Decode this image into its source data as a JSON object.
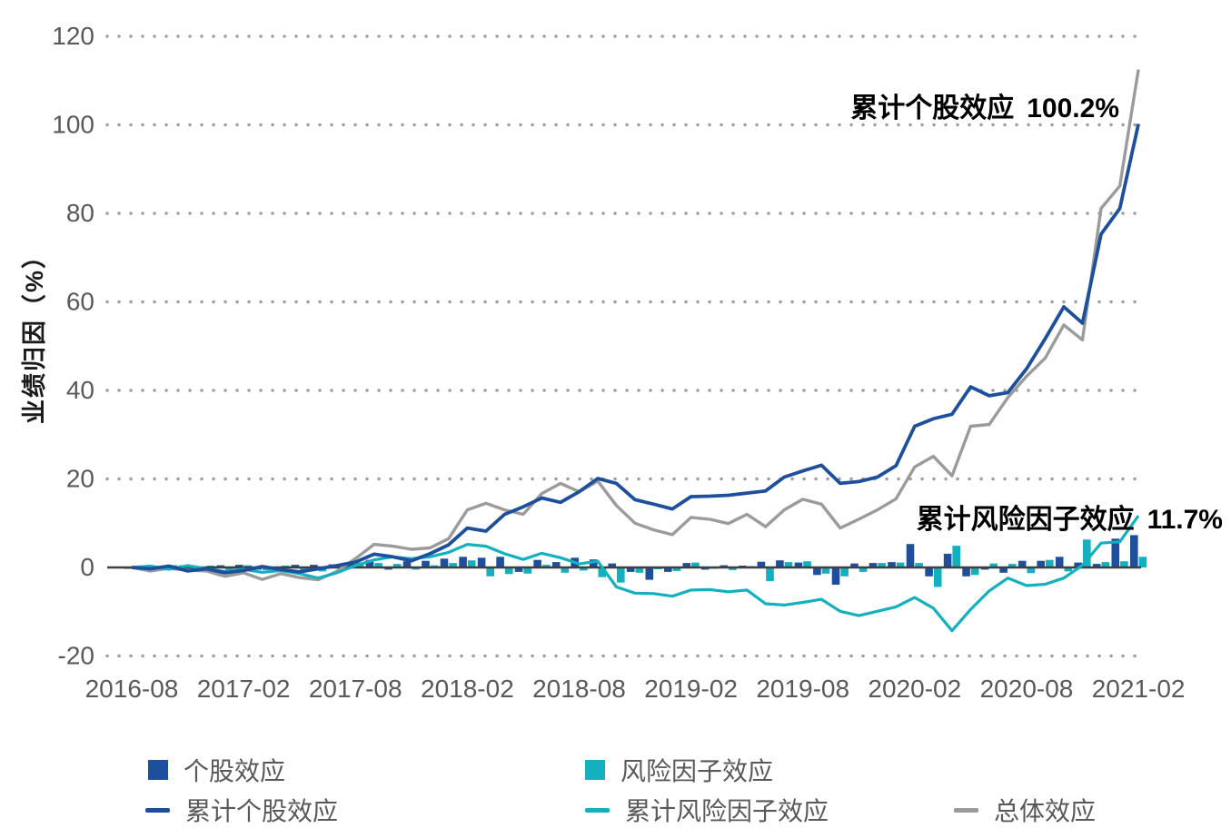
{
  "chart_data": {
    "type": "bar+line combo",
    "title": "",
    "ylabel": "业绩归因（%）",
    "ylim": [
      -20,
      120
    ],
    "yticks": [
      120,
      100,
      80,
      60,
      40,
      20,
      0,
      -20
    ],
    "grid": "dotted horizontal",
    "legend_position": "bottom",
    "xtick_labels": [
      "2016-08",
      "2017-02",
      "2017-08",
      "2018-02",
      "2018-08",
      "2019-02",
      "2019-08",
      "2020-02",
      "2020-08",
      "2021-02"
    ],
    "months": [
      "2016-08",
      "2016-09",
      "2016-10",
      "2016-11",
      "2016-12",
      "2017-01",
      "2017-02",
      "2017-03",
      "2017-04",
      "2017-05",
      "2017-06",
      "2017-07",
      "2017-08",
      "2017-09",
      "2017-10",
      "2017-11",
      "2017-12",
      "2018-01",
      "2018-02",
      "2018-03",
      "2018-04",
      "2018-05",
      "2018-06",
      "2018-07",
      "2018-08",
      "2018-09",
      "2018-10",
      "2018-11",
      "2018-12",
      "2019-01",
      "2019-02",
      "2019-03",
      "2019-04",
      "2019-05",
      "2019-06",
      "2019-07",
      "2019-08",
      "2019-09",
      "2019-10",
      "2019-11",
      "2019-12",
      "2020-01",
      "2020-02",
      "2020-03",
      "2020-04",
      "2020-05",
      "2020-06",
      "2020-07",
      "2020-08",
      "2020-09",
      "2020-10",
      "2020-11",
      "2020-12",
      "2021-01",
      "2021-02"
    ],
    "series": [
      {
        "name": "个股效应",
        "type": "bar",
        "color": "#1e4f9c",
        "values": [
          -0.3,
          0.4,
          -0.6,
          0.5,
          -0.8,
          0.5,
          0.6,
          -0.5,
          -0.4,
          0.6,
          0.6,
          0.7,
          1.0,
          1.7,
          -0.5,
          1.4,
          1.5,
          2.0,
          2.4,
          2.2,
          2.4,
          -1.0,
          1.7,
          1.2,
          2.2,
          1.8,
          0.9,
          -1.0,
          -2.8,
          -1.0,
          1.0,
          -0.5,
          0.5,
          0.4,
          1.3,
          1.6,
          1.1,
          -1.7,
          -3.9,
          0.9,
          1.0,
          1.2,
          5.3,
          -2.0,
          3.1,
          -2.0,
          -0.5,
          -1.2,
          1.5,
          1.5,
          2.4,
          1.1,
          0.8,
          6.5,
          7.3
        ]
      },
      {
        "name": "风险因子效应",
        "type": "bar",
        "color": "#13b1bf",
        "values": [
          0.3,
          -0.4,
          0.5,
          -0.4,
          0.4,
          -0.6,
          0.5,
          -0.6,
          0.4,
          -0.7,
          -0.9,
          0.8,
          1.1,
          1.0,
          0.8,
          -0.5,
          0.5,
          1.0,
          1.6,
          -2.0,
          -1.5,
          -1.4,
          0.6,
          -1.2,
          -0.7,
          -2.2,
          -3.4,
          -1.2,
          -0.4,
          -0.8,
          1.1,
          -0.3,
          -0.6,
          0.3,
          -3.1,
          1.2,
          1.4,
          -1.4,
          -2.0,
          -1.0,
          1.0,
          1.1,
          1.0,
          -4.4,
          4.9,
          -1.7,
          0.9,
          0.8,
          -1.3,
          1.7,
          -0.9,
          6.3,
          1.2,
          1.4,
          2.4
        ]
      },
      {
        "name": "累计个股效应",
        "type": "line",
        "color": "#1e4f9c",
        "final_value": "100.2%",
        "values": [
          0,
          -0.3,
          0.3,
          -0.8,
          -0.3,
          -1.2,
          -0.7,
          0.2,
          -0.5,
          -1.0,
          -0.3,
          0.4,
          1.2,
          3.0,
          2.4,
          1.5,
          3.1,
          5.1,
          8.9,
          8.2,
          12.0,
          13.7,
          15.7,
          14.7,
          17.1,
          20.1,
          19.0,
          15.3,
          14.3,
          13.2,
          16.0,
          16.1,
          16.3,
          16.8,
          17.3,
          20.4,
          21.8,
          23.1,
          19.0,
          19.4,
          20.4,
          23.0,
          31.9,
          33.6,
          34.6,
          40.8,
          38.8,
          39.5,
          44.9,
          51.7,
          58.9,
          55.2,
          75.3,
          81.1,
          100.2
        ]
      },
      {
        "name": "累计风险因子效应",
        "type": "line",
        "color": "#13b1bf",
        "final_value": "11.7%",
        "values": [
          0,
          0.3,
          -0.4,
          0.4,
          -0.3,
          -0.9,
          -0.4,
          -1.1,
          -0.7,
          -1.4,
          -2.4,
          -1.2,
          0.4,
          1.7,
          2.4,
          2.0,
          2.4,
          3.4,
          5.2,
          4.8,
          3.1,
          1.8,
          3.2,
          2.2,
          0.8,
          1.4,
          -4.4,
          -5.8,
          -5.9,
          -6.5,
          -5.1,
          -5.0,
          -5.5,
          -5.1,
          -8.2,
          -8.5,
          -7.9,
          -7.2,
          -9.9,
          -10.9,
          -9.9,
          -8.9,
          -6.8,
          -9.2,
          -14.3,
          -9.5,
          -5.3,
          -2.4,
          -4.1,
          -3.8,
          -2.4,
          0.5,
          5.5,
          5.8,
          11.7
        ]
      },
      {
        "name": "总体效应",
        "type": "line",
        "color": "#9b9b9b",
        "values": [
          0,
          -0.8,
          -0.2,
          -0.6,
          -0.8,
          -2.0,
          -1.2,
          -2.7,
          -1.4,
          -2.3,
          -2.8,
          -0.9,
          2.0,
          5.2,
          4.8,
          4.1,
          4.4,
          6.5,
          13.0,
          14.5,
          13.0,
          12.0,
          16.7,
          19.0,
          17.1,
          19.5,
          14.0,
          10.0,
          8.5,
          7.4,
          11.3,
          10.9,
          9.9,
          12.0,
          9.2,
          13.0,
          15.4,
          14.3,
          8.9,
          10.9,
          13.0,
          15.5,
          22.7,
          25.1,
          20.7,
          31.9,
          32.3,
          38.4,
          43.2,
          47.3,
          54.8,
          51.4,
          81.1,
          86.2,
          112.5
        ]
      }
    ],
    "annotations": [
      {
        "label": "累计个股效应",
        "value": "100.2%"
      },
      {
        "label": "累计风险因子效应",
        "value": "11.7%"
      }
    ],
    "colors": {
      "stock": "#1e4f9c",
      "risk": "#13b1bf",
      "total": "#9b9b9b",
      "grid": "#9e9e9e",
      "axis_text": "#58595b",
      "zero_line": "#3d3f40",
      "annotation": "#000000"
    }
  }
}
